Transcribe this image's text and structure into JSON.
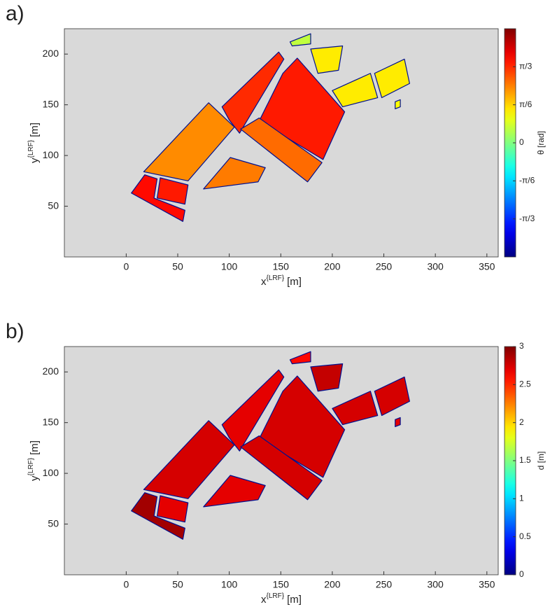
{
  "chart_data": [
    {
      "type": "heatmap",
      "label": "a)",
      "xlabel": {
        "base": "x",
        "sup": "{LRF}",
        "unit": "[m]"
      },
      "ylabel": {
        "base": "y",
        "sup": "{LRF}",
        "unit": "[m]"
      },
      "colorbar_label": "θ [rad]",
      "xlim": [
        -60,
        361
      ],
      "ylim": [
        0,
        225
      ],
      "xticks": [
        0,
        50,
        100,
        150,
        200,
        250,
        300,
        350
      ],
      "yticks": [
        50,
        100,
        150,
        200
      ],
      "clim": [
        -1.5708,
        1.5708
      ],
      "cticks": [
        {
          "value": -1.0472,
          "label": "-π/3"
        },
        {
          "value": -0.5236,
          "label": "-π/6"
        },
        0,
        {
          "value": 0.5236,
          "label": "π/6"
        },
        {
          "value": 1.0472,
          "label": "π/3"
        }
      ],
      "regions": [
        {
          "x": [
            5,
            18,
            30,
            27,
            57,
            55
          ],
          "y": [
            63,
            81,
            77,
            58,
            46,
            35
          ],
          "value": 1.15
        },
        {
          "x": [
            33,
            60,
            57,
            30
          ],
          "y": [
            78,
            71,
            52,
            58
          ],
          "value": 1.1
        },
        {
          "x": [
            17,
            80,
            105,
            60
          ],
          "y": [
            84,
            152,
            128,
            75
          ],
          "value": 0.75
        },
        {
          "x": [
            93,
            148,
            153,
            110,
            100
          ],
          "y": [
            148,
            202,
            195,
            122,
            135
          ],
          "value": 1.05
        },
        {
          "x": [
            129,
            152,
            166,
            212,
            191
          ],
          "y": [
            134,
            181,
            196,
            143,
            96
          ],
          "value": 1.1
        },
        {
          "x": [
            111,
            129,
            190,
            176
          ],
          "y": [
            126,
            137,
            93,
            74
          ],
          "value": 0.85
        },
        {
          "x": [
            75,
            101,
            135,
            128
          ],
          "y": [
            67,
            98,
            88,
            74
          ],
          "value": 0.8
        },
        {
          "x": [
            179,
            210,
            206,
            186
          ],
          "y": [
            205,
            208,
            184,
            181
          ],
          "value": 0.45
        },
        {
          "x": [
            159,
            179,
            179,
            161
          ],
          "y": [
            212,
            220,
            210,
            208
          ],
          "value": 0.2
        },
        {
          "x": [
            200,
            237,
            244,
            210
          ],
          "y": [
            164,
            181,
            157,
            148
          ],
          "value": 0.45
        },
        {
          "x": [
            241,
            270,
            275,
            248
          ],
          "y": [
            181,
            195,
            171,
            157
          ],
          "value": 0.45
        },
        {
          "x": [
            261,
            266,
            266,
            261
          ],
          "y": [
            153,
            155,
            148,
            146
          ],
          "value": 0.4
        }
      ]
    },
    {
      "type": "heatmap",
      "label": "b)",
      "xlabel": {
        "base": "x",
        "sup": "{LRF}",
        "unit": "[m]"
      },
      "ylabel": {
        "base": "y",
        "sup": "{LRF}",
        "unit": "[m]"
      },
      "colorbar_label": "d [m]",
      "xlim": [
        -60,
        361
      ],
      "ylim": [
        0,
        225
      ],
      "xticks": [
        0,
        50,
        100,
        150,
        200,
        250,
        300,
        350
      ],
      "yticks": [
        50,
        100,
        150,
        200
      ],
      "clim": [
        0,
        3
      ],
      "cticks": [
        0,
        0.5,
        1,
        1.5,
        2,
        2.5,
        3
      ],
      "regions": [
        {
          "x": [
            5,
            18,
            30,
            27,
            57,
            55
          ],
          "y": [
            63,
            81,
            77,
            58,
            46,
            35
          ],
          "value": 2.9
        },
        {
          "x": [
            33,
            60,
            57,
            30
          ],
          "y": [
            78,
            71,
            52,
            58
          ],
          "value": 2.7
        },
        {
          "x": [
            17,
            80,
            105,
            60
          ],
          "y": [
            84,
            152,
            128,
            75
          ],
          "value": 2.75
        },
        {
          "x": [
            93,
            148,
            153,
            110,
            100
          ],
          "y": [
            148,
            202,
            195,
            122,
            135
          ],
          "value": 2.7
        },
        {
          "x": [
            129,
            152,
            166,
            212,
            191
          ],
          "y": [
            134,
            181,
            196,
            143,
            96
          ],
          "value": 2.75
        },
        {
          "x": [
            111,
            129,
            190,
            176
          ],
          "y": [
            126,
            137,
            93,
            74
          ],
          "value": 2.75
        },
        {
          "x": [
            75,
            101,
            135,
            128
          ],
          "y": [
            67,
            98,
            88,
            74
          ],
          "value": 2.7
        },
        {
          "x": [
            179,
            210,
            206,
            186
          ],
          "y": [
            205,
            208,
            184,
            181
          ],
          "value": 2.8
        },
        {
          "x": [
            159,
            179,
            179,
            161
          ],
          "y": [
            212,
            220,
            210,
            208
          ],
          "value": 2.6
        },
        {
          "x": [
            200,
            237,
            244,
            210
          ],
          "y": [
            164,
            181,
            157,
            148
          ],
          "value": 2.75
        },
        {
          "x": [
            241,
            270,
            275,
            248
          ],
          "y": [
            181,
            195,
            171,
            157
          ],
          "value": 2.75
        },
        {
          "x": [
            261,
            266,
            266,
            261
          ],
          "y": [
            153,
            155,
            148,
            146
          ],
          "value": 2.7
        }
      ]
    }
  ]
}
